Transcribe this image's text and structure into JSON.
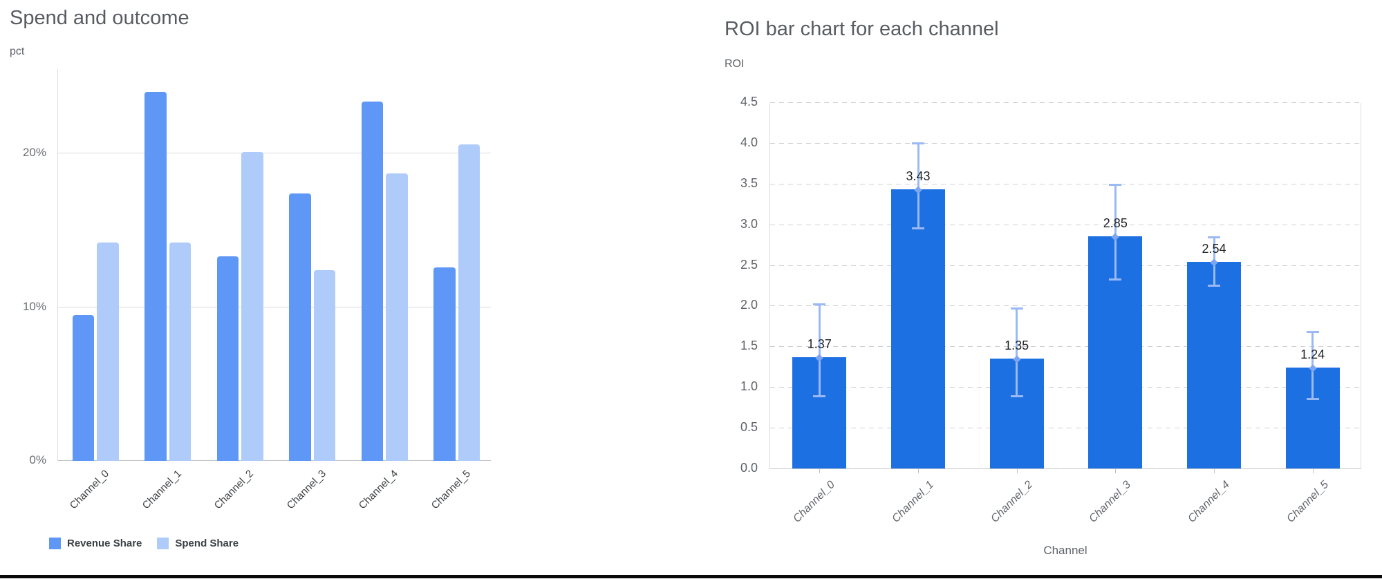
{
  "page": {
    "background": "#ffffff",
    "bottom_border_color": "#0a0a0a"
  },
  "chart_data": [
    {
      "type": "bar",
      "title": "Spend and outcome",
      "ylabel": "pct",
      "xlabel": "",
      "categories": [
        "Channel_0",
        "Channel_1",
        "Channel_2",
        "Channel_3",
        "Channel_4",
        "Channel_5"
      ],
      "series": [
        {
          "name": "Revenue Share",
          "color": "#5e97f6",
          "values": [
            9.5,
            24.0,
            13.3,
            17.4,
            23.4,
            12.6
          ]
        },
        {
          "name": "Spend Share",
          "color": "#aecbfa",
          "values": [
            14.2,
            14.2,
            20.1,
            12.4,
            18.7,
            20.6
          ]
        }
      ],
      "y_ticks": [
        {
          "value": 0,
          "label": "0%"
        },
        {
          "value": 10,
          "label": "10%"
        },
        {
          "value": 20,
          "label": "20%"
        }
      ],
      "ylim": [
        0,
        25.5
      ],
      "grid": true,
      "legend_position": "bottom"
    },
    {
      "type": "bar",
      "title": "ROI bar chart for each channel",
      "ylabel": "ROI",
      "xlabel": "Channel",
      "categories": [
        "Channel_0",
        "Channel_1",
        "Channel_2",
        "Channel_3",
        "Channel_4",
        "Channel_5"
      ],
      "values": [
        1.37,
        3.43,
        1.35,
        2.85,
        2.54,
        1.24
      ],
      "bar_labels": [
        "1.37",
        "3.43",
        "1.35",
        "2.85",
        "2.54",
        "1.24"
      ],
      "error_low": [
        0.88,
        2.95,
        0.88,
        2.32,
        2.24,
        0.85
      ],
      "error_high": [
        2.04,
        4.02,
        1.99,
        3.51,
        2.86,
        1.7
      ],
      "bar_color": "#1d70e2",
      "error_color": "#9ab9f5",
      "error_marker_color": "#7ea6f0",
      "y_ticks": [
        {
          "value": 0,
          "label": "0.0"
        },
        {
          "value": 0.5,
          "label": "0.5"
        },
        {
          "value": 1,
          "label": "1.0"
        },
        {
          "value": 1.5,
          "label": "1.5"
        },
        {
          "value": 2,
          "label": "2.0"
        },
        {
          "value": 2.5,
          "label": "2.5"
        },
        {
          "value": 3,
          "label": "3.0"
        },
        {
          "value": 3.5,
          "label": "3.5"
        },
        {
          "value": 4,
          "label": "4.0"
        },
        {
          "value": 4.5,
          "label": "4.5"
        }
      ],
      "ylim": [
        0,
        4.5
      ],
      "grid": "dashed",
      "legend_position": "none"
    }
  ]
}
